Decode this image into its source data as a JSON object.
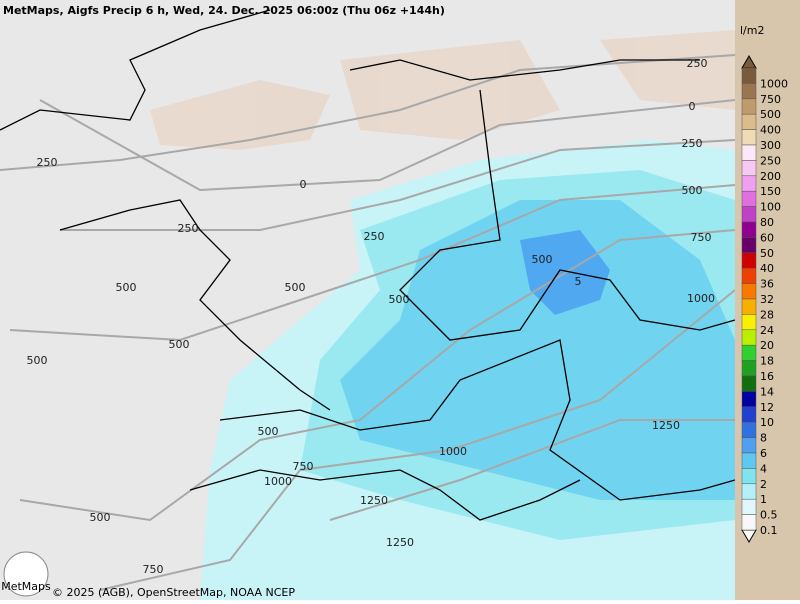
{
  "header": {
    "title": "MetMaps, Aigfs Precip 6 h, Wed, 24. Dec. 2025 06:00z (Thu 06z +144h)"
  },
  "legend": {
    "unit": "l/m2",
    "entries": [
      {
        "label": "1000",
        "color": "#7a5a3c"
      },
      {
        "label": "750",
        "color": "#9a7550"
      },
      {
        "label": "500",
        "color": "#c09a6c"
      },
      {
        "label": "400",
        "color": "#dcbc8c"
      },
      {
        "label": "300",
        "color": "#f0dcb4"
      },
      {
        "label": "250",
        "color": "#fce8f8"
      },
      {
        "label": "200",
        "color": "#f8c8f4"
      },
      {
        "label": "150",
        "color": "#f0a0f0"
      },
      {
        "label": "100",
        "color": "#e070e0"
      },
      {
        "label": "80",
        "color": "#c040c8"
      },
      {
        "label": "60",
        "color": "#900090"
      },
      {
        "label": "50",
        "color": "#680068"
      },
      {
        "label": "40",
        "color": "#d00000"
      },
      {
        "label": "36",
        "color": "#f04000"
      },
      {
        "label": "32",
        "color": "#f87800"
      },
      {
        "label": "28",
        "color": "#f8b000"
      },
      {
        "label": "24",
        "color": "#f8f000"
      },
      {
        "label": "20",
        "color": "#b8f000"
      },
      {
        "label": "18",
        "color": "#30d030"
      },
      {
        "label": "16",
        "color": "#20a020"
      },
      {
        "label": "14",
        "color": "#107010"
      },
      {
        "label": "12",
        "color": "#0000a0"
      },
      {
        "label": "10",
        "color": "#2040d0"
      },
      {
        "label": "8",
        "color": "#3070e0"
      },
      {
        "label": "6",
        "color": "#50a0f0"
      },
      {
        "label": "4",
        "color": "#60c8f0"
      },
      {
        "label": "2",
        "color": "#80e4f0"
      },
      {
        "label": "1",
        "color": "#b4f0f8"
      },
      {
        "label": "0.5",
        "color": "#e0f8fc"
      },
      {
        "label": "0.1",
        "color": "#f8f8f8"
      }
    ]
  },
  "contours": [
    "250",
    "0",
    "250",
    "250",
    "500",
    "500",
    "500",
    "500",
    "500",
    "500",
    "750",
    "1000",
    "1250",
    "1250",
    "500",
    "750",
    "1000",
    "1250",
    "1000",
    "750",
    "500",
    "250",
    "0",
    "250",
    "500",
    "5"
  ],
  "footer": {
    "attribution": "© 2025 (AGB), OpenStreetMap, NOAA NCEP",
    "logo": "MetMaps"
  }
}
